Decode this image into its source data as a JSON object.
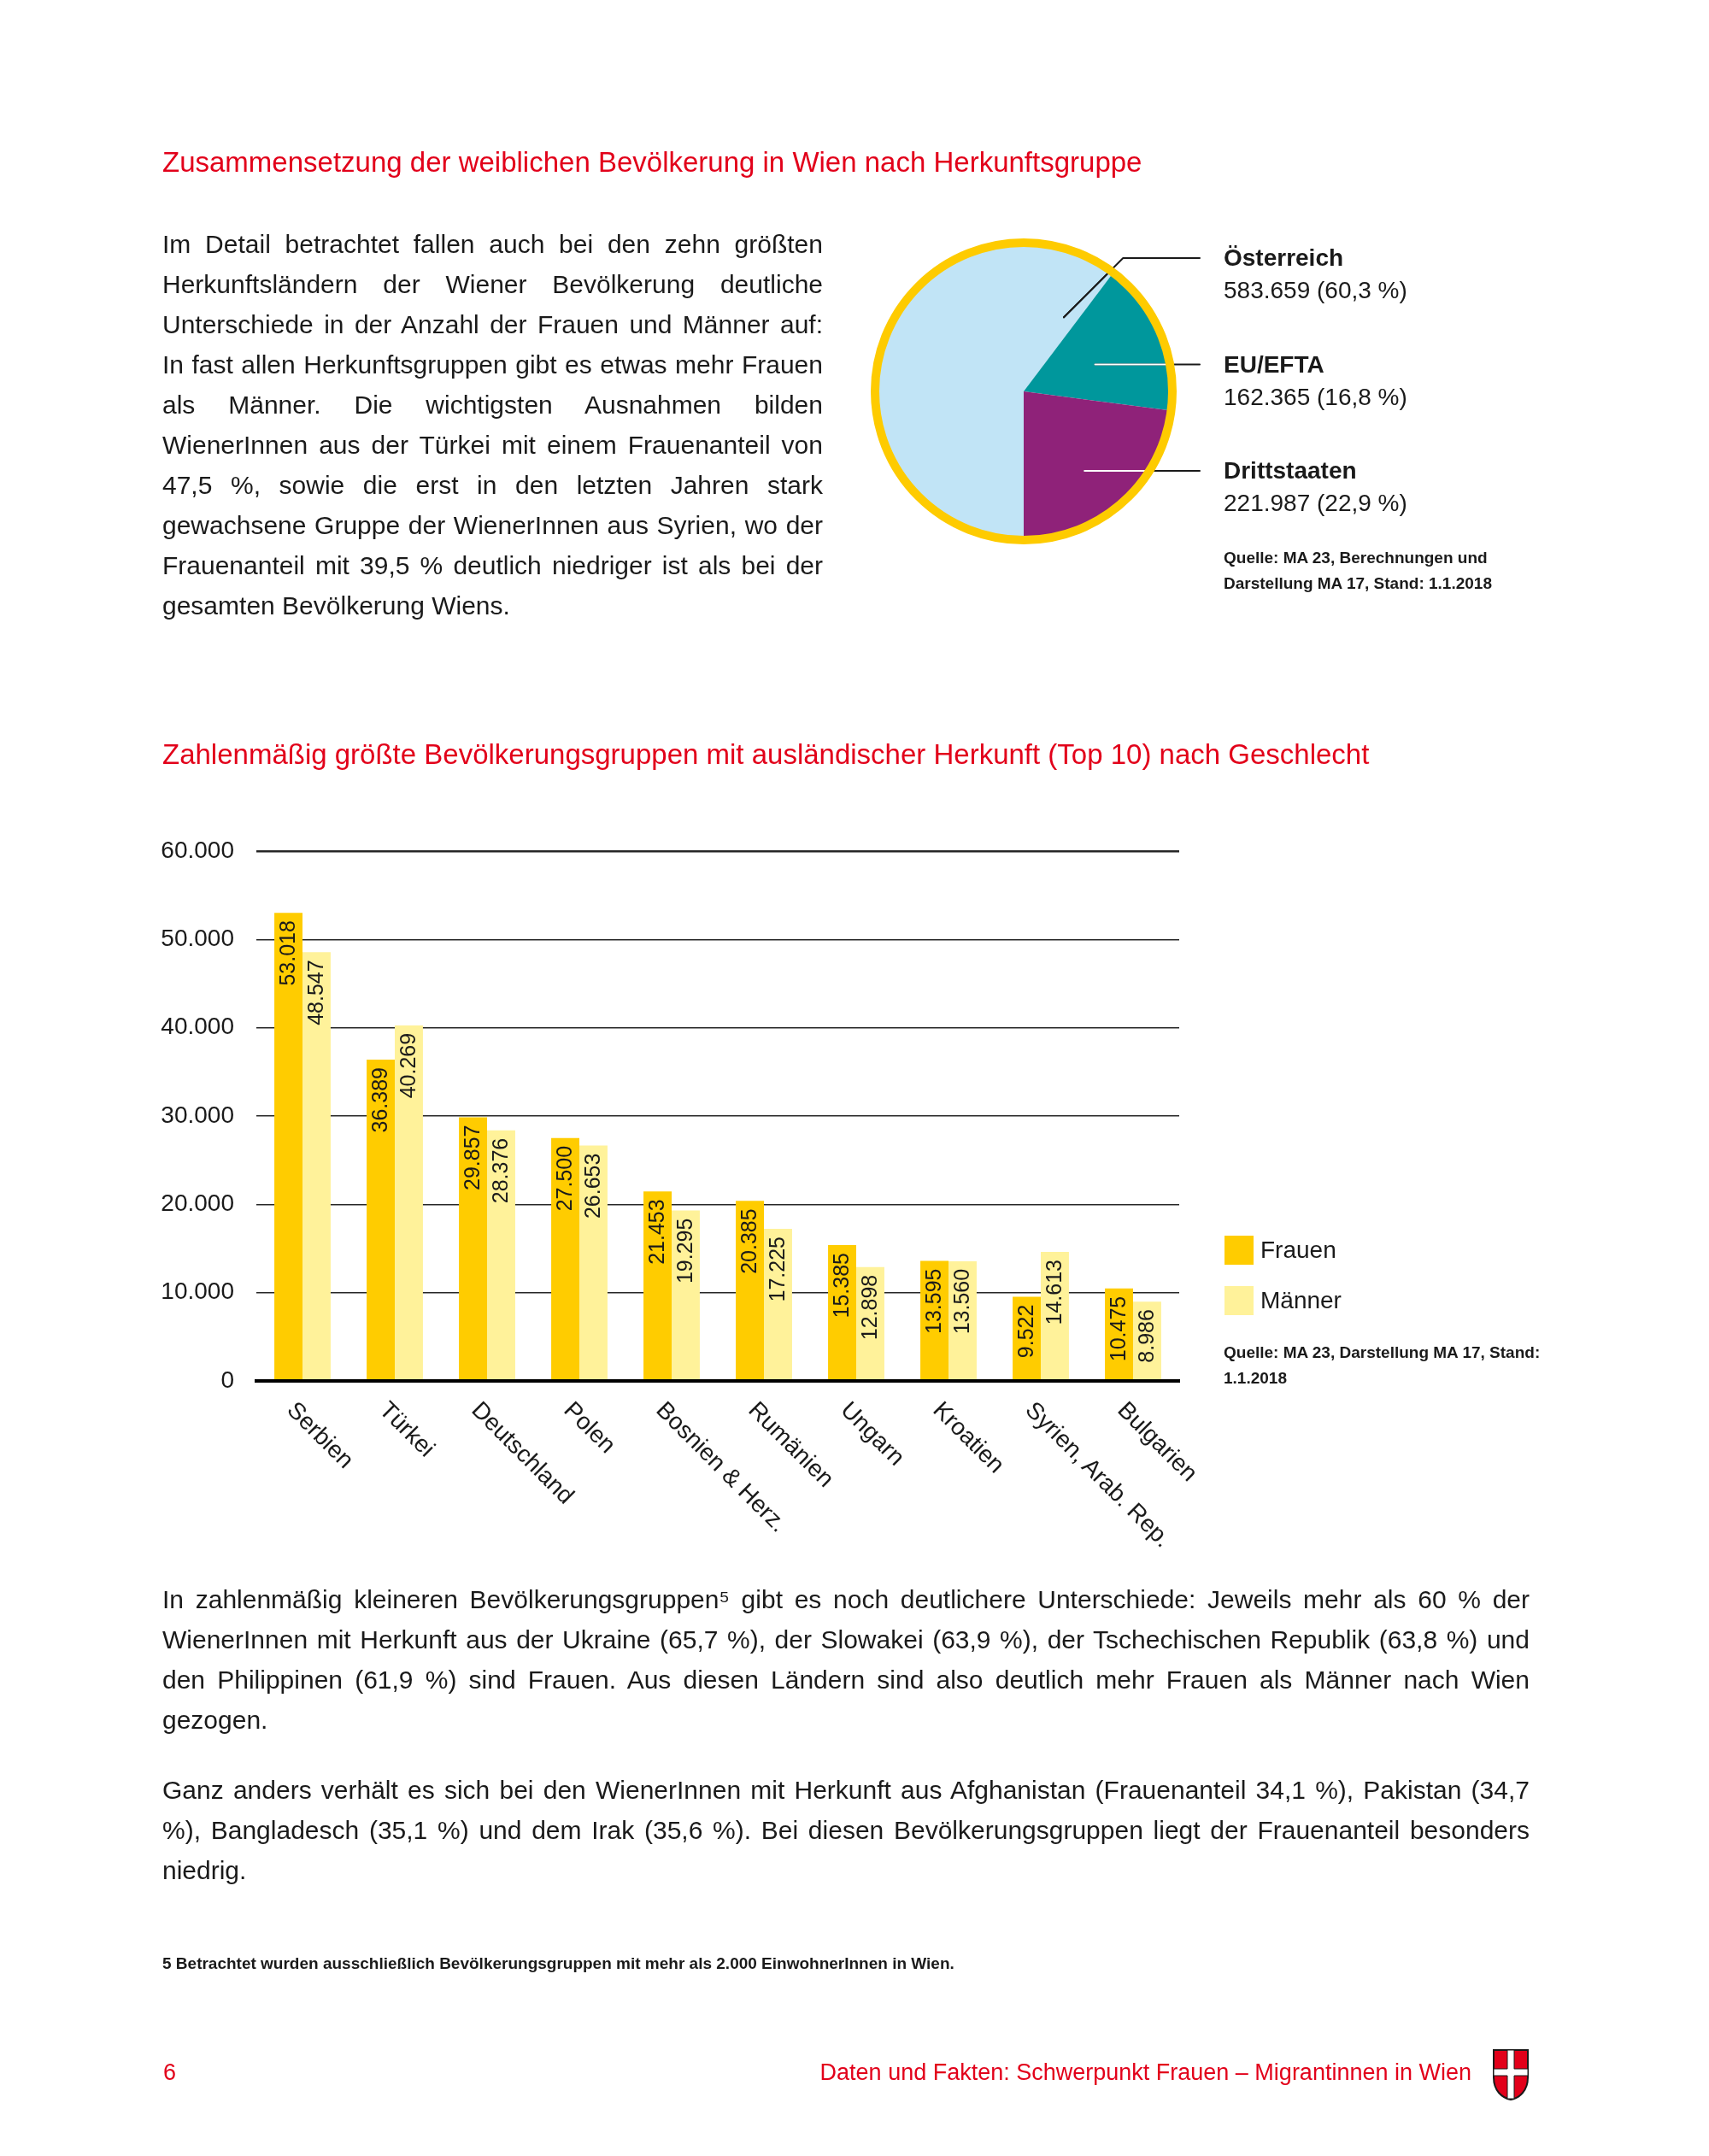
{
  "chart_data": [
    {
      "type": "pie",
      "title": "Zusammensetzung der weiblichen Bevölkerung in Wien nach Herkunftsgruppe",
      "categories": [
        "Österreich",
        "EU/EFTA",
        "Drittstaaten"
      ],
      "values": [
        583659,
        162365,
        221987
      ],
      "colors": [
        "#c1e4f6",
        "#00979c",
        "#8f2279"
      ],
      "value_labels": [
        "583.659 (60,3 %)",
        "162.365 (16,8 %)",
        "221.987 (22,9 %)"
      ],
      "annotations": [
        "Im Detail betrachtet fallen auch bei den zehn größten Herkunftsländern der Wiener Bevölkerung deutliche Unterschiede in der Anzahl der Frauen und Männer auf: In fast allen Herkunftsgruppen gibt es etwas mehr Frauen als Männer. Die wichtigsten Ausnahmen bilden WienerInnen aus der Türkei mit einem Frauenanteil von 47,5 %, sowie die erst in den letzten Jahren stark gewachsene Gruppe der WienerInnen aus Syrien, wo der Frauenanteil mit 39,5 % deutlich niedriger ist als bei der gesamten Bevölkerung Wiens.",
        "Quelle: MA 23, Berechnungen und Darstellung MA 17, Stand: 1.1.2018"
      ]
    },
    {
      "type": "bar",
      "title": "Zahlenmäßig größte Bevölkerungsgruppen mit ausländischer Herkunft (Top 10) nach Geschlecht",
      "categories": [
        "Serbien",
        "Türkei",
        "Deutschland",
        "Polen",
        "Bosnien & Herz.",
        "Rumänien",
        "Ungarn",
        "Kroatien",
        "Syrien, Arab. Rep.",
        "Bulgarien"
      ],
      "series": [
        {
          "name": "Frauen",
          "color": "#ffcc00",
          "values": [
            53018,
            36389,
            29857,
            27500,
            21453,
            20385,
            15385,
            13595,
            9522,
            10475
          ],
          "value_labels": [
            "53.018",
            "36.389",
            "29.857",
            "27.500",
            "21.453",
            "20.385",
            "15.385",
            "13.595",
            "9.522",
            "10.475"
          ]
        },
        {
          "name": "Männer",
          "color": "#fff29a",
          "values": [
            48547,
            40269,
            28376,
            26653,
            19295,
            17225,
            12898,
            13560,
            14613,
            8986
          ],
          "value_labels": [
            "48.547",
            "40.269",
            "28.376",
            "26.653",
            "19.295",
            "17.225",
            "12.898",
            "13.560",
            "14.613",
            "8.986"
          ]
        }
      ],
      "ylim": [
        0,
        60000
      ],
      "yticks": [
        0,
        {
          "value": 10000,
          "label": "10.000"
        },
        {
          "value": 20000,
          "label": "20.000"
        },
        {
          "value": 30000,
          "label": "30.000"
        },
        {
          "value": 40000,
          "label": "40.000"
        },
        {
          "value": 50000,
          "label": "50.000"
        },
        {
          "value": 60000,
          "label": "60.000"
        }
      ],
      "grid": "y",
      "legend": "right",
      "annotations": [
        "Quelle: MA 23, Darstellung MA 17, Stand: 1.1.2018",
        "In zahlenmäßig kleineren Bevölkerungsgruppen⁵ gibt es noch deutlichere Unterschiede: Jeweils mehr als 60 % der WienerInnen mit Herkunft aus der Ukraine (65,7 %), der Slowakei (63,9 %), der Tschechischen Republik (63,8 %) und den Philippinen (61,9 %) sind Frauen. Aus diesen Ländern sind also deutlich mehr Frauen als Männer nach Wien gezogen.",
        "Ganz anders verhält es sich bei den WienerInnen mit Herkunft aus Afghanistan (Frauenanteil 34,1 %), Pakistan (34,7 %), Bangladesch (35,1 %) und dem Irak (35,6 %). Bei diesen Bevölkerungsgruppen liegt der Frauenanteil besonders niedrig.",
        "5 Betrachtet wurden ausschließlich Bevölkerungsgruppen mit mehr als 2.000 EinwohnerInnen in Wien.",
        "6",
        "Daten und Fakten: Schwerpunkt Frauen – Migrantinnen in Wien"
      ]
    }
  ]
}
